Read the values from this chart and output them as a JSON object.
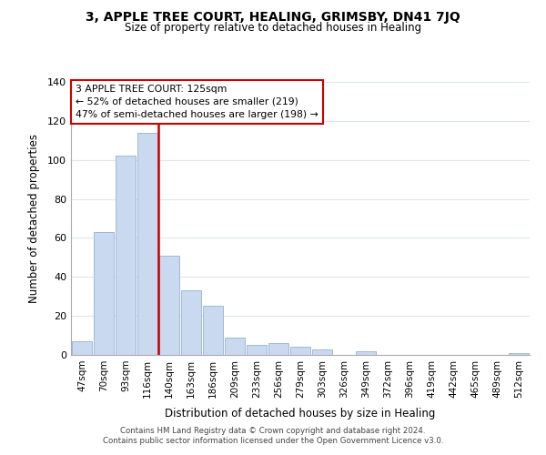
{
  "title": "3, APPLE TREE COURT, HEALING, GRIMSBY, DN41 7JQ",
  "subtitle": "Size of property relative to detached houses in Healing",
  "xlabel": "Distribution of detached houses by size in Healing",
  "ylabel": "Number of detached properties",
  "bar_labels": [
    "47sqm",
    "70sqm",
    "93sqm",
    "116sqm",
    "140sqm",
    "163sqm",
    "186sqm",
    "209sqm",
    "233sqm",
    "256sqm",
    "279sqm",
    "303sqm",
    "326sqm",
    "349sqm",
    "372sqm",
    "396sqm",
    "419sqm",
    "442sqm",
    "465sqm",
    "489sqm",
    "512sqm"
  ],
  "bar_values": [
    7,
    63,
    102,
    114,
    51,
    33,
    25,
    9,
    5,
    6,
    4,
    3,
    0,
    2,
    0,
    0,
    0,
    0,
    0,
    0,
    1
  ],
  "bar_color": "#c9d9f0",
  "bar_edge_color": "#a0b8d8",
  "vline_color": "#cc0000",
  "vline_x": 3.5,
  "ylim": [
    0,
    140
  ],
  "yticks": [
    0,
    20,
    40,
    60,
    80,
    100,
    120,
    140
  ],
  "annotation_title": "3 APPLE TREE COURT: 125sqm",
  "annotation_line1": "← 52% of detached houses are smaller (219)",
  "annotation_line2": "47% of semi-detached houses are larger (198) →",
  "footer1": "Contains HM Land Registry data © Crown copyright and database right 2024.",
  "footer2": "Contains public sector information licensed under the Open Government Licence v3.0.",
  "background_color": "#ffffff",
  "grid_color": "#dce6f0"
}
